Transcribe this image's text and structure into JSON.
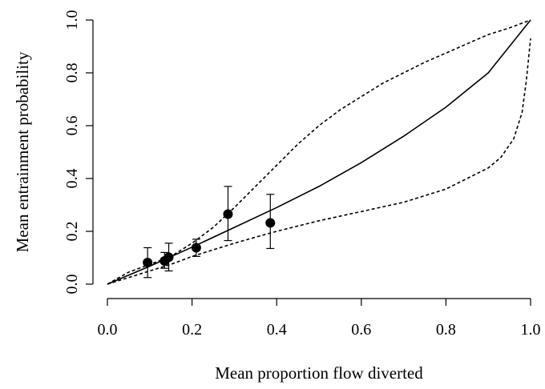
{
  "chart_data": {
    "type": "scatter",
    "xlabel": "Mean proportion flow diverted",
    "ylabel": "Mean entrainment probability",
    "xlim": [
      0.0,
      1.0
    ],
    "ylim": [
      0.0,
      1.0
    ],
    "xticks": [
      "0.0",
      "0.2",
      "0.4",
      "0.6",
      "0.8",
      "1.0"
    ],
    "yticks": [
      "0.0",
      "0.2",
      "0.4",
      "0.6",
      "0.8",
      "1.0"
    ],
    "grid": false,
    "points": [
      {
        "x": 0.095,
        "y": 0.082,
        "err_low": 0.025,
        "err_high": 0.138
      },
      {
        "x": 0.135,
        "y": 0.088,
        "err_low": 0.06,
        "err_high": 0.12
      },
      {
        "x": 0.145,
        "y": 0.102,
        "err_low": 0.05,
        "err_high": 0.155
      },
      {
        "x": 0.21,
        "y": 0.138,
        "err_low": 0.105,
        "err_high": 0.17
      },
      {
        "x": 0.285,
        "y": 0.265,
        "err_low": 0.165,
        "err_high": 0.37
      },
      {
        "x": 0.385,
        "y": 0.232,
        "err_low": 0.135,
        "err_high": 0.34
      }
    ],
    "fitted_curve": {
      "style": "solid",
      "x": [
        0.0,
        0.1,
        0.2,
        0.3,
        0.4,
        0.5,
        0.6,
        0.7,
        0.8,
        0.9,
        1.0
      ],
      "y": [
        0.0,
        0.068,
        0.14,
        0.215,
        0.29,
        0.37,
        0.46,
        0.56,
        0.67,
        0.8,
        1.0
      ]
    },
    "upper_bound_curve": {
      "style": "dashed",
      "x": [
        0.0,
        0.05,
        0.1,
        0.15,
        0.2,
        0.25,
        0.3,
        0.35,
        0.4,
        0.45,
        0.5,
        0.55,
        0.6,
        0.65,
        0.7,
        0.75,
        0.8,
        0.85,
        0.9,
        0.95,
        1.0
      ],
      "y": [
        0.0,
        0.045,
        0.075,
        0.105,
        0.155,
        0.215,
        0.29,
        0.37,
        0.45,
        0.53,
        0.6,
        0.66,
        0.71,
        0.76,
        0.8,
        0.84,
        0.875,
        0.91,
        0.945,
        0.97,
        1.0
      ]
    },
    "lower_bound_curve": {
      "style": "dashed",
      "x": [
        0.0,
        0.05,
        0.1,
        0.15,
        0.2,
        0.25,
        0.3,
        0.35,
        0.4,
        0.5,
        0.6,
        0.7,
        0.8,
        0.85,
        0.9,
        0.93,
        0.96,
        0.98,
        0.99,
        1.0
      ],
      "y": [
        0.0,
        0.025,
        0.05,
        0.075,
        0.105,
        0.13,
        0.155,
        0.178,
        0.2,
        0.24,
        0.275,
        0.31,
        0.36,
        0.4,
        0.44,
        0.48,
        0.55,
        0.65,
        0.77,
        0.93
      ]
    }
  }
}
